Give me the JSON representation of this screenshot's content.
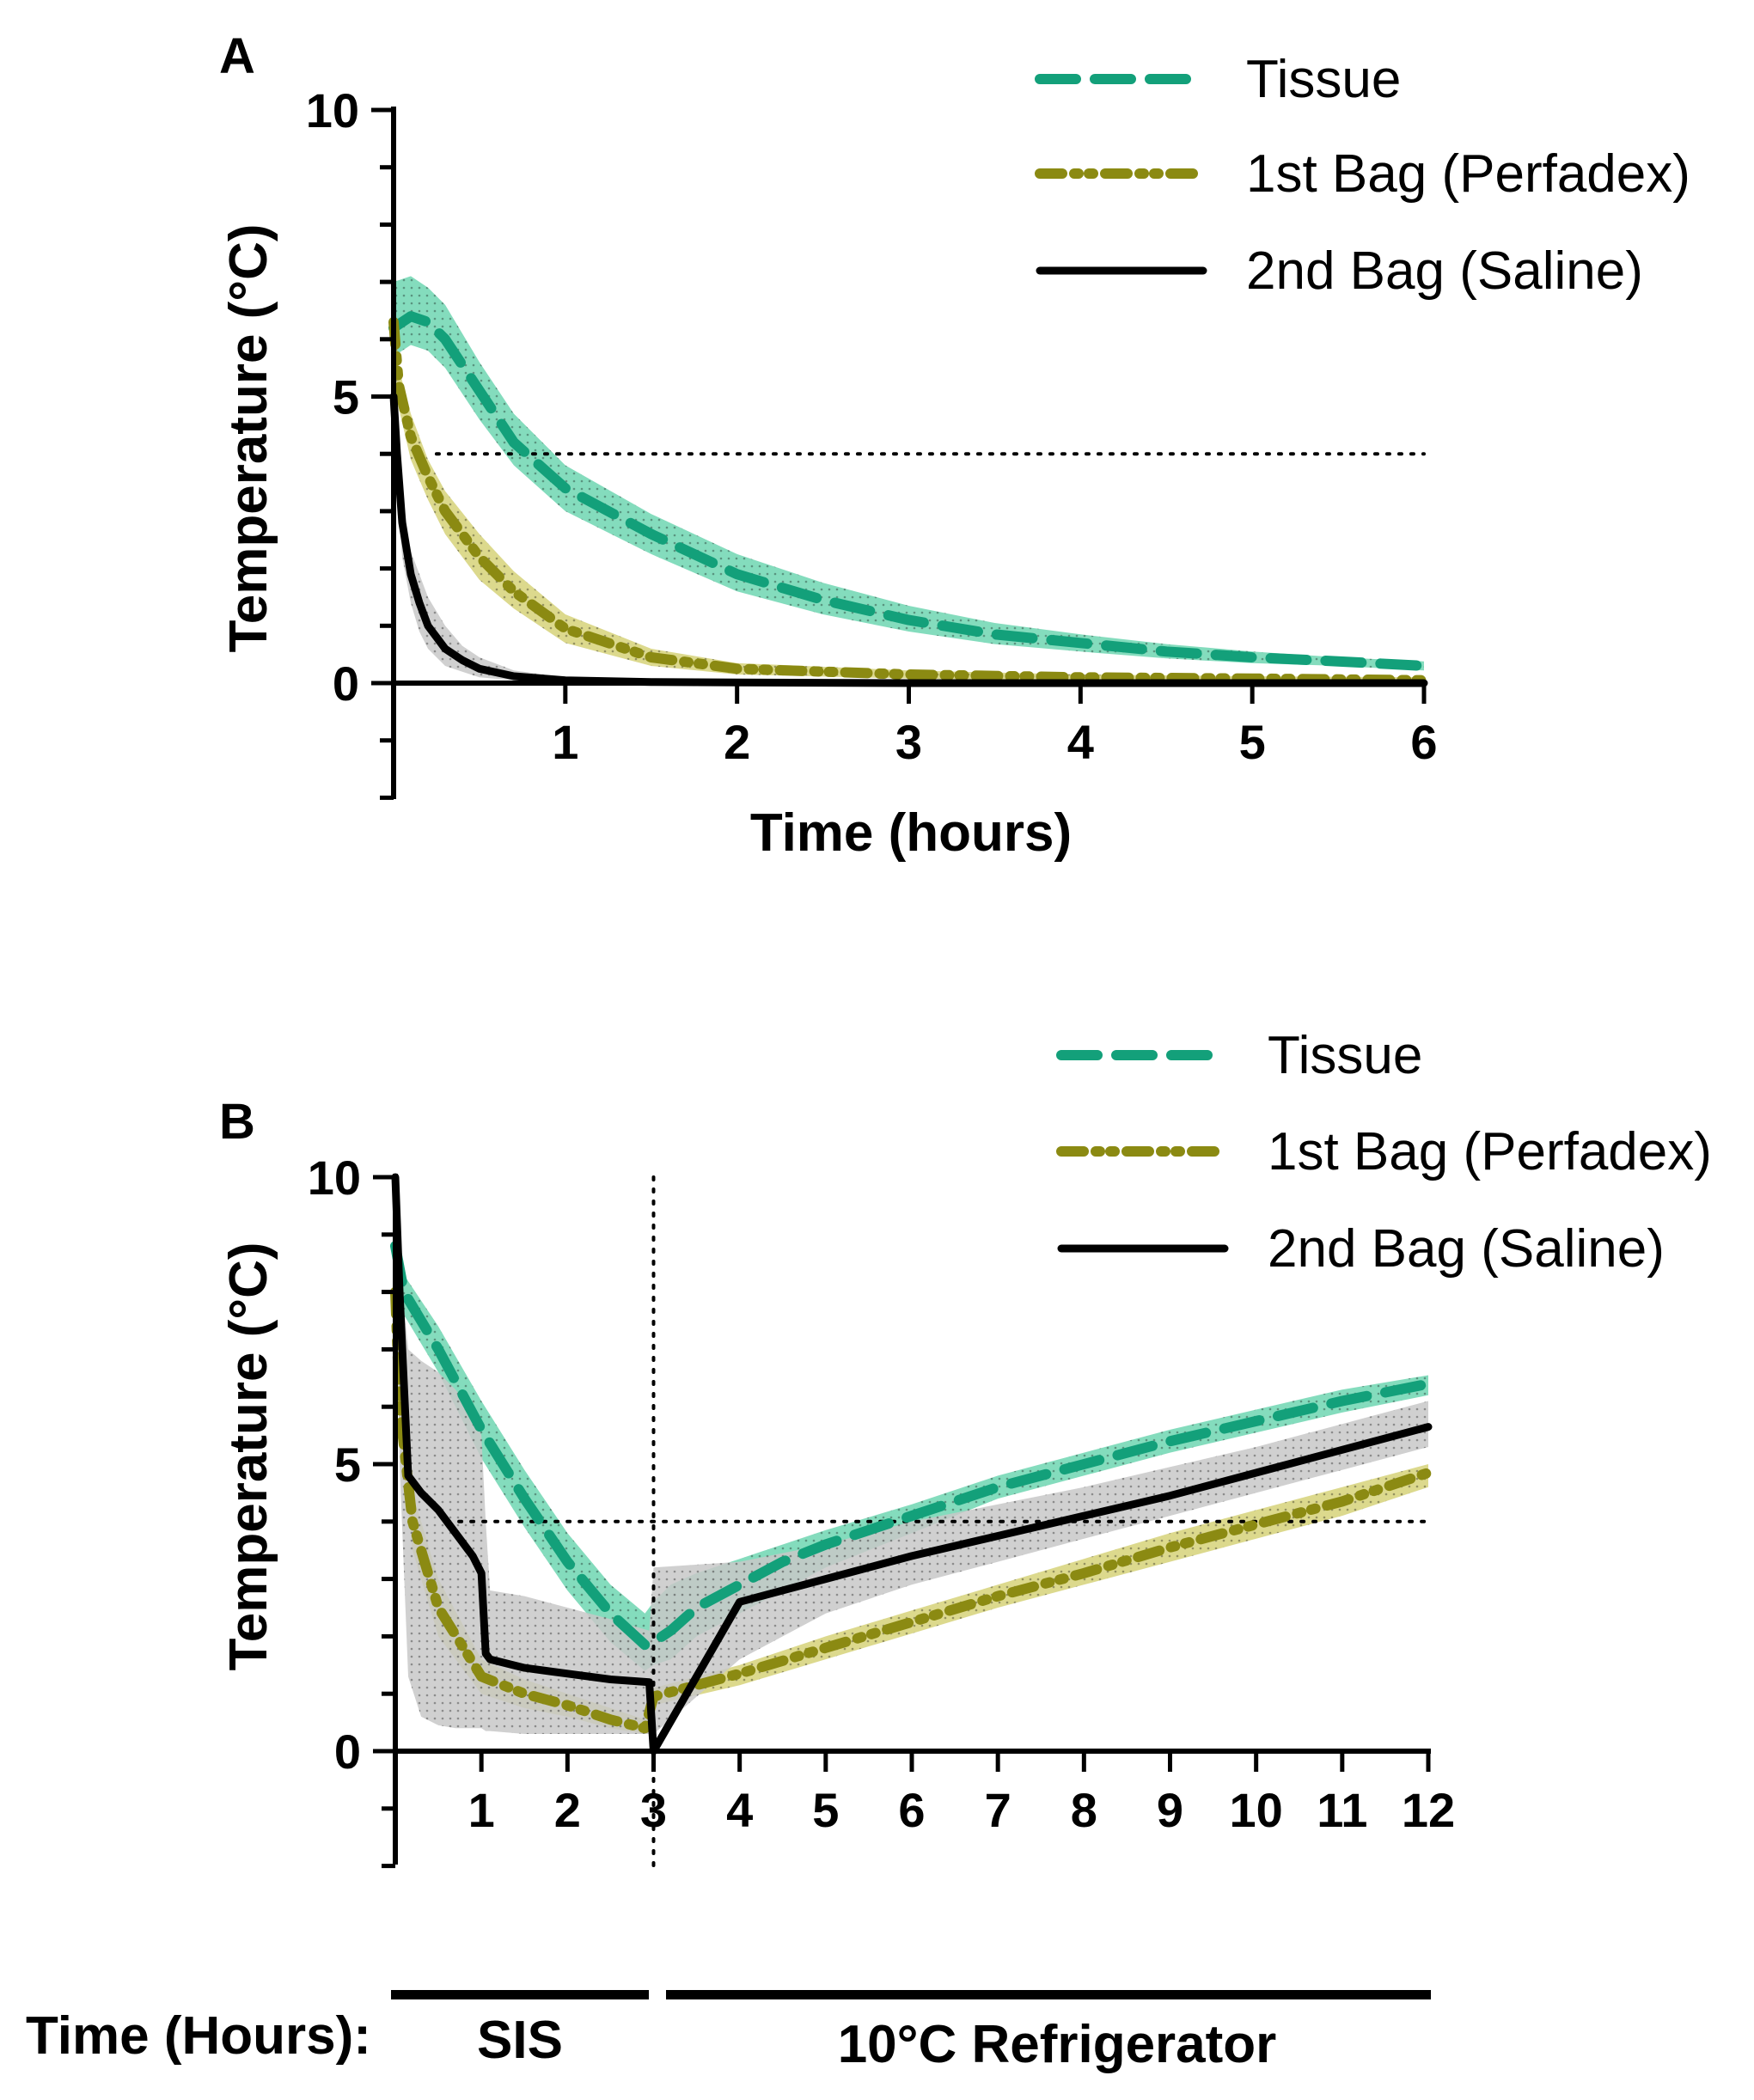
{
  "colors": {
    "tissue": "#13a07a",
    "tissue_band": "#6ed6b1",
    "perfadex": "#8b8a12",
    "perfadex_band": "#d6d279",
    "saline": "#000000",
    "saline_band": "#c8c8c8"
  },
  "chart_data": [
    {
      "id": "A",
      "type": "line",
      "panel_label": "A",
      "xlabel": "Time (hours)",
      "ylabel": "Temperature (°C)",
      "xlim": [
        0,
        6
      ],
      "ylim": [
        -2,
        10
      ],
      "x_ticks": [
        1,
        2,
        3,
        4,
        5,
        6
      ],
      "y_ticks": [
        0,
        5,
        10
      ],
      "reference_lines": [
        {
          "axis": "y",
          "value": 4,
          "style": "dotted",
          "x_from": 0.25,
          "x_to": 6
        }
      ],
      "legend": [
        {
          "label": "Tissue",
          "series": "tissue"
        },
        {
          "label": "1st Bag (Perfadex)",
          "series": "perfadex"
        },
        {
          "label": "2nd Bag (Saline)",
          "series": "saline"
        }
      ],
      "series": [
        {
          "key": "tissue",
          "name": "Tissue",
          "style": "dashed",
          "x": [
            0,
            0.1,
            0.2,
            0.3,
            0.5,
            0.7,
            1.0,
            1.5,
            2.0,
            2.5,
            3.0,
            3.5,
            4.0,
            4.5,
            5.0,
            5.5,
            6.0
          ],
          "y": [
            6.2,
            6.4,
            6.3,
            6.0,
            5.1,
            4.2,
            3.4,
            2.6,
            1.9,
            1.45,
            1.1,
            0.85,
            0.7,
            0.55,
            0.45,
            0.38,
            0.3
          ],
          "upper": [
            7.0,
            7.1,
            6.9,
            6.6,
            5.6,
            4.7,
            3.8,
            2.95,
            2.25,
            1.75,
            1.35,
            1.05,
            0.85,
            0.68,
            0.55,
            0.45,
            0.38
          ],
          "lower": [
            5.7,
            5.9,
            5.8,
            5.5,
            4.6,
            3.8,
            3.0,
            2.25,
            1.6,
            1.2,
            0.9,
            0.68,
            0.55,
            0.43,
            0.35,
            0.3,
            0.22
          ]
        },
        {
          "key": "perfadex",
          "name": "1st Bag (Perfadex)",
          "style": "dashdotdot",
          "x": [
            0,
            0.03,
            0.1,
            0.2,
            0.3,
            0.5,
            0.7,
            1.0,
            1.5,
            2.0,
            3.0,
            4.0,
            5.0,
            6.0
          ],
          "y": [
            6.3,
            5.2,
            4.3,
            3.6,
            3.0,
            2.2,
            1.6,
            0.95,
            0.45,
            0.25,
            0.15,
            0.1,
            0.08,
            0.05
          ],
          "upper": [
            6.8,
            5.5,
            4.7,
            3.9,
            3.35,
            2.6,
            1.95,
            1.2,
            0.6,
            0.35,
            0.22,
            0.15,
            0.12,
            0.1
          ],
          "lower": [
            5.8,
            4.8,
            3.9,
            3.2,
            2.6,
            1.8,
            1.3,
            0.7,
            0.3,
            0.15,
            0.08,
            0.05,
            0.03,
            0.02
          ]
        },
        {
          "key": "saline",
          "name": "2nd Bag (Saline)",
          "style": "solid",
          "x": [
            0,
            0.02,
            0.05,
            0.1,
            0.15,
            0.2,
            0.3,
            0.4,
            0.5,
            0.7,
            1.0,
            1.5,
            2.0,
            3.0,
            4.0,
            5.0,
            6.0
          ],
          "y": [
            5.0,
            4.0,
            2.8,
            1.9,
            1.4,
            1.0,
            0.6,
            0.4,
            0.25,
            0.12,
            0.05,
            0.02,
            0.01,
            0.0,
            0.0,
            0.0,
            0.0
          ],
          "upper": [
            5.5,
            4.5,
            3.3,
            2.3,
            1.9,
            1.5,
            1.0,
            0.65,
            0.45,
            0.22,
            0.1,
            0.04,
            0.02,
            0.01,
            0.0,
            0.0,
            0.0
          ],
          "lower": [
            4.5,
            3.4,
            2.2,
            1.4,
            0.9,
            0.6,
            0.3,
            0.2,
            0.1,
            0.05,
            0.02,
            0.0,
            0.0,
            0.0,
            0.0,
            0.0,
            0.0
          ]
        }
      ]
    },
    {
      "id": "B",
      "type": "line",
      "panel_label": "B",
      "xlabel": "",
      "ylabel": "Temperature (°C)",
      "xlim": [
        0,
        12
      ],
      "ylim": [
        -2,
        10
      ],
      "x_ticks": [
        1,
        2,
        3,
        4,
        5,
        6,
        7,
        8,
        9,
        10,
        11,
        12
      ],
      "y_ticks": [
        0,
        5,
        10
      ],
      "reference_lines": [
        {
          "axis": "y",
          "value": 4,
          "style": "dotted",
          "x_from": 0.6,
          "x_to": 12
        },
        {
          "axis": "x",
          "value": 3,
          "style": "dotted"
        }
      ],
      "legend": [
        {
          "label": "Tissue",
          "series": "tissue"
        },
        {
          "label": "1st Bag (Perfadex)",
          "series": "perfadex"
        },
        {
          "label": "2nd Bag (Saline)",
          "series": "saline"
        }
      ],
      "series": [
        {
          "key": "tissue",
          "name": "Tissue",
          "style": "dashed",
          "x": [
            0,
            0.1,
            0.5,
            1.0,
            1.5,
            2.0,
            2.5,
            2.9,
            3.0,
            3.2,
            3.5,
            4.0,
            4.5,
            5.0,
            6.0,
            7.0,
            8.0,
            9.0,
            10.0,
            11.0,
            12.0
          ],
          "y": [
            8.8,
            8.0,
            7.0,
            5.6,
            4.4,
            3.3,
            2.4,
            1.85,
            1.9,
            2.1,
            2.5,
            2.9,
            3.3,
            3.6,
            4.1,
            4.6,
            5.0,
            5.4,
            5.75,
            6.1,
            6.4
          ],
          "upper": [
            9.0,
            8.3,
            7.4,
            6.1,
            4.9,
            3.8,
            2.9,
            2.4,
            2.6,
            2.9,
            3.1,
            3.35,
            3.6,
            3.85,
            4.3,
            4.8,
            5.2,
            5.6,
            5.95,
            6.3,
            6.55
          ],
          "lower": [
            8.5,
            7.6,
            6.6,
            5.1,
            3.9,
            2.8,
            1.9,
            1.4,
            1.5,
            1.6,
            2.0,
            2.4,
            2.8,
            3.2,
            3.8,
            4.4,
            4.8,
            5.2,
            5.55,
            5.9,
            6.2
          ]
        },
        {
          "key": "perfadex",
          "name": "1st Bag (Perfadex)",
          "style": "dashdotdot",
          "x": [
            0,
            0.05,
            0.2,
            0.5,
            1.0,
            1.5,
            2.0,
            2.5,
            2.9,
            3.0,
            4.0,
            5.0,
            6.0,
            7.0,
            8.0,
            9.0,
            10.0,
            11.0,
            12.0
          ],
          "y": [
            8.0,
            6.0,
            4.0,
            2.5,
            1.3,
            1.0,
            0.8,
            0.55,
            0.4,
            0.95,
            1.35,
            1.8,
            2.25,
            2.7,
            3.1,
            3.55,
            3.95,
            4.35,
            4.85
          ],
          "upper": [
            8.2,
            6.4,
            4.5,
            3.0,
            1.6,
            1.25,
            1.0,
            0.75,
            0.55,
            1.1,
            1.5,
            2.0,
            2.45,
            2.9,
            3.35,
            3.8,
            4.2,
            4.6,
            5.0
          ],
          "lower": [
            7.7,
            5.6,
            3.5,
            2.0,
            1.0,
            0.75,
            0.6,
            0.4,
            0.3,
            0.8,
            1.15,
            1.6,
            2.05,
            2.5,
            2.9,
            3.3,
            3.7,
            4.1,
            4.6
          ]
        },
        {
          "key": "saline",
          "name": "2nd Bag (Saline)",
          "style": "solid",
          "x": [
            0,
            0.05,
            0.15,
            0.3,
            0.5,
            0.7,
            0.9,
            1.0,
            1.05,
            1.1,
            1.5,
            2.0,
            2.5,
            2.95,
            3.0,
            4.0,
            5.0,
            6.0,
            7.0,
            8.0,
            9.0,
            10.0,
            11.0,
            12.0
          ],
          "y": [
            10.0,
            8.0,
            4.8,
            4.5,
            4.2,
            3.8,
            3.4,
            3.1,
            1.7,
            1.6,
            1.45,
            1.35,
            1.25,
            1.2,
            0.0,
            2.6,
            3.0,
            3.4,
            3.75,
            4.1,
            4.45,
            4.85,
            5.25,
            5.65
          ],
          "upper": [
            10.0,
            8.5,
            7.0,
            6.8,
            6.6,
            6.3,
            5.9,
            5.5,
            4.0,
            2.8,
            2.7,
            2.5,
            2.3,
            2.1,
            3.2,
            3.3,
            3.6,
            4.0,
            4.3,
            4.6,
            4.95,
            5.3,
            5.7,
            6.1
          ],
          "lower": [
            9.5,
            5.0,
            1.3,
            0.6,
            0.45,
            0.4,
            0.4,
            0.4,
            0.35,
            0.35,
            0.3,
            0.3,
            0.3,
            0.3,
            0.3,
            1.6,
            2.4,
            2.9,
            3.3,
            3.7,
            4.1,
            4.5,
            4.9,
            5.3
          ]
        }
      ]
    }
  ],
  "timeline": {
    "row_label": "Time (Hours):",
    "phases": [
      {
        "label": "SIS",
        "from": 0,
        "to": 3
      },
      {
        "label": "10°C Refrigerator",
        "from": 3,
        "to": 12
      }
    ]
  }
}
